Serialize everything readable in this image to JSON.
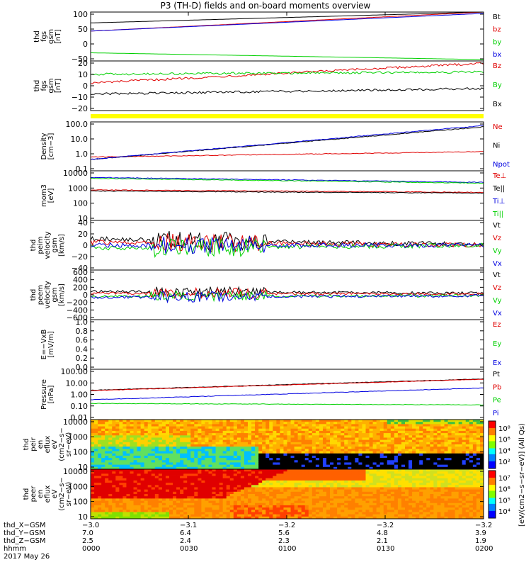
{
  "title": "P3 (TH-D) fields and on-board moments overview",
  "colors": {
    "black": "#000000",
    "red": "#e00000",
    "green": "#00d000",
    "blue": "#0000e0",
    "yellow": "#ffff00"
  },
  "chart_data": {
    "type": "line",
    "panels": [
      {
        "id": "fgs-gsm",
        "ylabel": [
          "thd",
          "fgs",
          "gsm",
          "[nT]"
        ],
        "ticks": [
          "100",
          "50",
          "0",
          "−50"
        ],
        "ylim": [
          -80,
          100
        ],
        "legend": [
          {
            "text": "Bt",
            "color": "black"
          },
          {
            "text": "bz",
            "color": "red"
          },
          {
            "text": "by",
            "color": "green"
          },
          {
            "text": "bx",
            "color": "blue"
          }
        ],
        "series": [
          {
            "name": "Bt",
            "color": "black",
            "start": 60,
            "end": 100
          },
          {
            "name": "bz",
            "color": "red",
            "start": 30,
            "end": 100
          },
          {
            "name": "by",
            "color": "green",
            "start": -50,
            "end": -75
          },
          {
            "name": "bx",
            "color": "blue",
            "start": 30,
            "end": 95
          }
        ]
      },
      {
        "id": "fgs-gsm-detrended",
        "ylabel": [
          "thd",
          "fgs",
          "gsm",
          "[nT]"
        ],
        "ticks": [
          "20",
          "10",
          "0",
          "−10",
          "−20"
        ],
        "ylim": [
          -25,
          20
        ],
        "legend": [
          {
            "text": "Bz",
            "color": "red"
          },
          {
            "text": "By",
            "color": "green"
          },
          {
            "text": "Bx",
            "color": "black"
          }
        ],
        "series": [
          {
            "name": "Bz",
            "color": "red",
            "start": 0,
            "end": 18
          },
          {
            "name": "By",
            "color": "green",
            "start": 8,
            "end": 10
          },
          {
            "name": "Bx",
            "color": "black",
            "start": -10,
            "end": -5
          }
        ]
      },
      {
        "id": "density",
        "ylabel": [
          "Density",
          "[cm−3]"
        ],
        "ticks": [
          "100.0",
          "10.0",
          "1.0",
          "0.1"
        ],
        "ylim": [
          0.1,
          100
        ],
        "log": true,
        "legend": [
          {
            "text": "Ne",
            "color": "red"
          },
          {
            "text": "Ni",
            "color": "black"
          },
          {
            "text": "Npot",
            "color": "blue"
          }
        ],
        "series": [
          {
            "name": "Ne",
            "color": "red",
            "start": 0.7,
            "end": 1.5
          },
          {
            "name": "Ni",
            "color": "black",
            "start": 0.5,
            "end": 50
          },
          {
            "name": "Npot",
            "color": "blue",
            "start": 0.5,
            "end": 60
          }
        ]
      },
      {
        "id": "temperature",
        "ylabel": [
          "mom3",
          "[eV]"
        ],
        "ticks": [
          "10000",
          "1000",
          "100",
          "10"
        ],
        "ylim": [
          10,
          10000
        ],
        "log": true,
        "legend": [
          {
            "text": "Te⊥",
            "color": "red"
          },
          {
            "text": "Te||",
            "color": "black"
          },
          {
            "text": "Ti⊥",
            "color": "blue"
          },
          {
            "text": "Ti||",
            "color": "green"
          }
        ],
        "series": [
          {
            "name": "Te⊥",
            "color": "red",
            "start": 700,
            "end": 500
          },
          {
            "name": "Te||",
            "color": "black",
            "start": 600,
            "end": 450
          },
          {
            "name": "Ti⊥",
            "color": "blue",
            "start": 4000,
            "end": 2000
          },
          {
            "name": "Ti||",
            "color": "green",
            "start": 3500,
            "end": 1800
          }
        ]
      },
      {
        "id": "peim-velocity",
        "ylabel": [
          "thd",
          "peim",
          "velocity",
          "gsm",
          "[km/s]"
        ],
        "ticks": [
          "40",
          "20",
          "0",
          "−20",
          "−40"
        ],
        "ylim": [
          -40,
          40
        ],
        "legend": [
          {
            "text": "Vt",
            "color": "black"
          },
          {
            "text": "Vz",
            "color": "red"
          },
          {
            "text": "Vy",
            "color": "green"
          },
          {
            "text": "Vx",
            "color": "blue"
          }
        ],
        "series": [
          {
            "name": "Vt",
            "color": "black",
            "start": 10,
            "end": 1
          },
          {
            "name": "Vz",
            "color": "red",
            "start": 5,
            "end": 0
          },
          {
            "name": "Vy",
            "color": "green",
            "start": -5,
            "end": 0
          },
          {
            "name": "Vx",
            "color": "blue",
            "start": 0,
            "end": 0
          }
        ]
      },
      {
        "id": "peem-velocity",
        "ylabel": [
          "thd",
          "peem",
          "velocity",
          "gsm",
          "[km/s]"
        ],
        "ticks": [
          "600",
          "400",
          "200",
          "0",
          "−200",
          "−400",
          "−600"
        ],
        "ylim": [
          -600,
          600
        ],
        "legend": [
          {
            "text": "Vt",
            "color": "black"
          },
          {
            "text": "Vz",
            "color": "red"
          },
          {
            "text": "Vy",
            "color": "green"
          },
          {
            "text": "Vx",
            "color": "blue"
          }
        ],
        "series": [
          {
            "name": "Vt",
            "color": "black",
            "start": 80,
            "end": 40
          },
          {
            "name": "Vz",
            "color": "red",
            "start": 40,
            "end": 20
          },
          {
            "name": "Vy",
            "color": "green",
            "start": -40,
            "end": -20
          },
          {
            "name": "Vx",
            "color": "blue",
            "start": -60,
            "end": -20
          }
        ]
      },
      {
        "id": "efield",
        "ylabel": [
          "E=−VxB",
          "[mV/m]"
        ],
        "ticks": [
          "1.0",
          "0.8",
          "0.6",
          "0.4",
          "0.2",
          "0.0"
        ],
        "ylim": [
          0,
          1
        ],
        "legend": [
          {
            "text": "Ez",
            "color": "red"
          },
          {
            "text": "Ey",
            "color": "green"
          },
          {
            "text": "Ex",
            "color": "blue"
          }
        ],
        "series": []
      },
      {
        "id": "pressure",
        "ylabel": [
          "Pressure",
          "[nPa]"
        ],
        "ticks": [
          "100.00",
          "10.00",
          "1.00",
          "0.10",
          "0.01"
        ],
        "ylim": [
          0.005,
          100
        ],
        "log": true,
        "legend": [
          {
            "text": "Pt",
            "color": "black"
          },
          {
            "text": "Pb",
            "color": "red"
          },
          {
            "text": "Pe",
            "color": "green"
          },
          {
            "text": "Pi",
            "color": "blue"
          }
        ],
        "series": [
          {
            "name": "Pt",
            "color": "black",
            "start": 1.6,
            "end": 15
          },
          {
            "name": "Pb",
            "color": "red",
            "start": 1.5,
            "end": 14
          },
          {
            "name": "Pe",
            "color": "green",
            "start": 0.12,
            "end": 0.09
          },
          {
            "name": "Pi",
            "color": "blue",
            "start": 0.25,
            "end": 2.5
          }
        ]
      },
      {
        "id": "peir-eflux",
        "ylabel": [
          "thd",
          "peir",
          "en",
          "eflux",
          "eV",
          "(cm2−s−",
          "sr−eV)"
        ],
        "ticks": [
          "10000",
          "1000",
          "100",
          "10"
        ],
        "type": "heatmap"
      },
      {
        "id": "peer-eflux",
        "ylabel": [
          "thd",
          "peer",
          "en",
          "eflux",
          "eV",
          "(cm2−s−",
          "sr−eV)"
        ],
        "ticks": [
          "10000",
          "1000",
          "100",
          "10"
        ],
        "type": "heatmap"
      }
    ],
    "colorbar1": {
      "ticks": [
        "10⁸",
        "10⁶",
        "10⁴",
        "10²"
      ]
    },
    "colorbar2": {
      "ticks": [
        "10⁷",
        "10⁶",
        "10⁵",
        "10⁴"
      ]
    },
    "colorbar_label": "[eV/(cm2−s−sr−eV)] (All Qs)",
    "xaxis": {
      "rows": [
        {
          "label": "thd_X−GSM",
          "values": [
            "−3.0",
            "−3.1",
            "−3.2",
            "−3.2",
            "−3.2"
          ]
        },
        {
          "label": "thd_Y−GSM",
          "values": [
            "7.0",
            "6.4",
            "5.6",
            "4.8",
            "3.9"
          ]
        },
        {
          "label": "thd_Z−GSM",
          "values": [
            "2.5",
            "2.4",
            "2.3",
            "2.1",
            "1.9"
          ]
        },
        {
          "label": "hhmm",
          "values": [
            "0000",
            "0030",
            "0100",
            "0130",
            "0200"
          ]
        }
      ],
      "date": "2017 May 26"
    }
  }
}
